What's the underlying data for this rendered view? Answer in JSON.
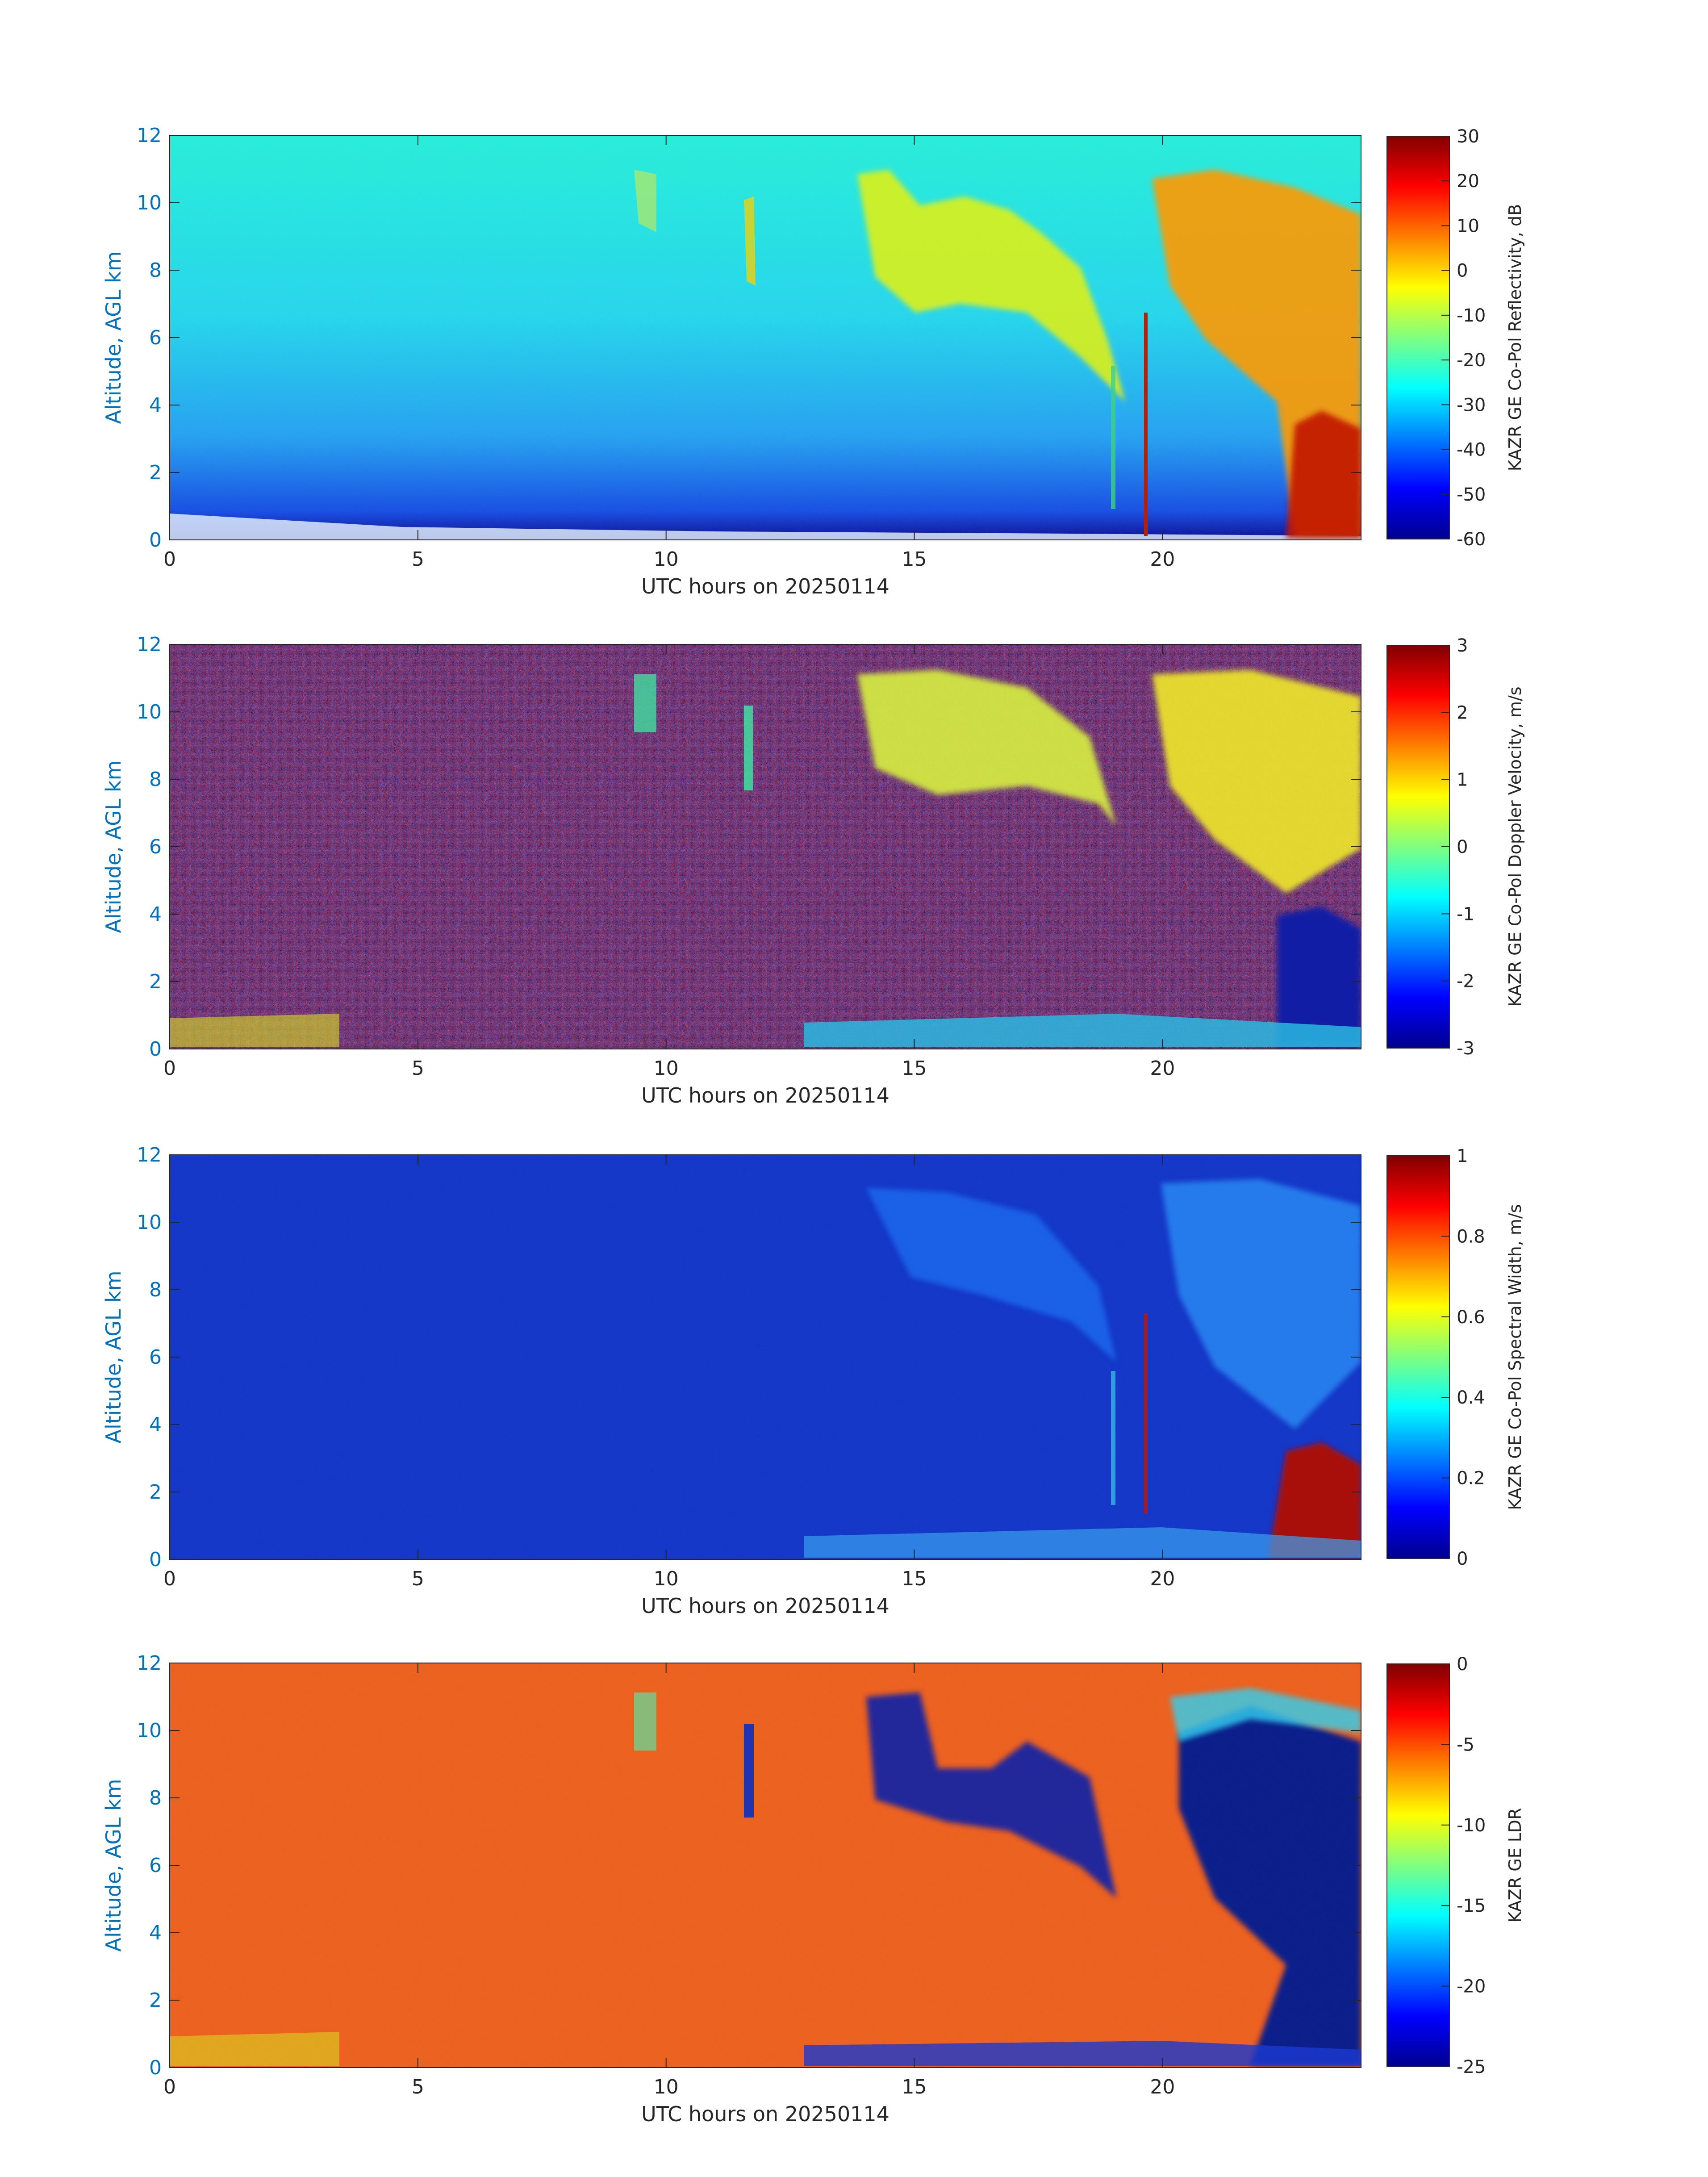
{
  "chart_data": [
    {
      "type": "heatmap",
      "panel": "reflectivity",
      "xlabel": "UTC hours on 20250114",
      "ylabel": "Altitude, AGL km",
      "xlim": [
        0,
        24
      ],
      "ylim": [
        0,
        12
      ],
      "x_ticks": [
        "0",
        "5",
        "10",
        "15",
        "20"
      ],
      "y_ticks": [
        "0",
        "2",
        "4",
        "6",
        "8",
        "10",
        "12"
      ],
      "colorbar": {
        "label": "KAZR GE Co-Pol Reflectivity, dB",
        "range": [
          -60,
          30
        ],
        "ticks": [
          "-60",
          "-50",
          "-40",
          "-30",
          "-20",
          "-10",
          "0",
          "10",
          "20",
          "30"
        ],
        "colormap": "jet"
      }
    },
    {
      "type": "heatmap",
      "panel": "doppler-velocity",
      "xlabel": "UTC hours on 20250114",
      "ylabel": "Altitude, AGL km",
      "xlim": [
        0,
        24
      ],
      "ylim": [
        0,
        12
      ],
      "x_ticks": [
        "0",
        "5",
        "10",
        "15",
        "20"
      ],
      "y_ticks": [
        "0",
        "2",
        "4",
        "6",
        "8",
        "10",
        "12"
      ],
      "colorbar": {
        "label": "KAZR GE Co-Pol Doppler Velocity, m/s",
        "range": [
          -3,
          3
        ],
        "ticks": [
          "-3",
          "-2",
          "-1",
          "0",
          "1",
          "2",
          "3"
        ],
        "colormap": "jet"
      }
    },
    {
      "type": "heatmap",
      "panel": "spectral-width",
      "xlabel": "UTC hours on 20250114",
      "ylabel": "Altitude, AGL km",
      "xlim": [
        0,
        24
      ],
      "ylim": [
        0,
        12
      ],
      "x_ticks": [
        "0",
        "5",
        "10",
        "15",
        "20"
      ],
      "y_ticks": [
        "0",
        "2",
        "4",
        "6",
        "8",
        "10",
        "12"
      ],
      "colorbar": {
        "label": "KAZR GE Co-Pol Spectral Width, m/s",
        "range": [
          0,
          1
        ],
        "ticks": [
          "0",
          "0.2",
          "0.4",
          "0.6",
          "0.8",
          "1"
        ],
        "colormap": "jet"
      }
    },
    {
      "type": "heatmap",
      "panel": "ldr",
      "xlabel": "UTC hours on 20250114",
      "ylabel": "Altitude, AGL km",
      "xlim": [
        0,
        24
      ],
      "ylim": [
        0,
        12
      ],
      "x_ticks": [
        "0",
        "5",
        "10",
        "15",
        "20"
      ],
      "y_ticks": [
        "0",
        "2",
        "4",
        "6",
        "8",
        "10",
        "12"
      ],
      "colorbar": {
        "label": "KAZR GE LDR",
        "range": [
          -25,
          0
        ],
        "ticks": [
          "-25",
          "-20",
          "-15",
          "-10",
          "-5",
          "0"
        ],
        "colormap": "jet"
      }
    }
  ],
  "colors": {
    "y_axis_text": "#0072bd",
    "x_axis_text": "#262626",
    "background": "#ffffff"
  }
}
